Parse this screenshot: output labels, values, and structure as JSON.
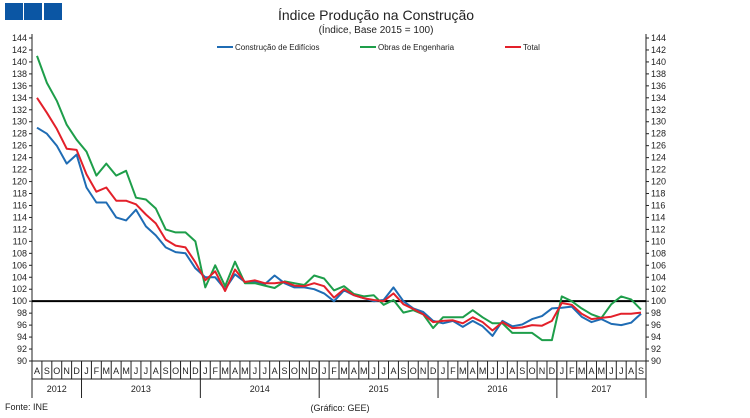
{
  "chart_data": {
    "type": "line",
    "title": "Índice Produção na Construção",
    "subtitle": "(Índice, Base 2015 = 100)",
    "source": "Fonte: INE",
    "credit": "(Gráfico: GEE)",
    "ylim": [
      90,
      144
    ],
    "ystep": 2,
    "reference_line": 100,
    "legend_position": "top",
    "months": [
      "A",
      "S",
      "O",
      "N",
      "D",
      "J",
      "F",
      "M",
      "A",
      "M",
      "J",
      "J",
      "A",
      "S",
      "O",
      "N",
      "D",
      "J",
      "F",
      "M",
      "A",
      "M",
      "J",
      "J",
      "A",
      "S",
      "O",
      "N",
      "D",
      "J",
      "F",
      "M",
      "A",
      "M",
      "J",
      "J",
      "A",
      "S",
      "O",
      "N",
      "D",
      "J",
      "F",
      "M",
      "A",
      "M",
      "J",
      "J",
      "A",
      "S",
      "O",
      "N",
      "D",
      "J",
      "F",
      "M",
      "A",
      "M",
      "J",
      "J",
      "A",
      "S"
    ],
    "years": [
      {
        "label": "2012",
        "count": 5
      },
      {
        "label": "2013",
        "count": 12
      },
      {
        "label": "2014",
        "count": 12
      },
      {
        "label": "2015",
        "count": 12
      },
      {
        "label": "2016",
        "count": 12
      },
      {
        "label": "2017",
        "count": 9
      }
    ],
    "series": [
      {
        "name": "Construção de Edifícios",
        "color": "#1f6cb4",
        "values": [
          129,
          128,
          126,
          123,
          124.5,
          119,
          116.5,
          116.5,
          114,
          113.5,
          115.3,
          112.5,
          111,
          109,
          108.2,
          108,
          105.5,
          104,
          104,
          102,
          104.5,
          103.2,
          103.3,
          102.8,
          104.3,
          103,
          102.3,
          102.3,
          102,
          101.3,
          100,
          101.8,
          101,
          100.5,
          100,
          100.2,
          102.3,
          100,
          98.8,
          98.2,
          96.7,
          96.3,
          96.7,
          95.7,
          96.7,
          95.8,
          94.2,
          96.7,
          95.8,
          96.1,
          97,
          97.5,
          98.8,
          98.9,
          99.1,
          97.4,
          96.5,
          97,
          96.2,
          96,
          96.4,
          97.9
        ]
      },
      {
        "name": "Obras de Engenharia",
        "color": "#1e9e4a",
        "values": [
          141,
          136.5,
          133.5,
          129.5,
          127,
          125,
          121,
          123,
          121,
          121.8,
          117.3,
          117,
          115.5,
          112,
          111.5,
          111.5,
          110,
          102.3,
          106,
          102.5,
          106.6,
          103,
          103,
          102.6,
          102.2,
          103.3,
          103,
          102.7,
          104.3,
          103.8,
          101.8,
          102.5,
          101.2,
          100.8,
          101,
          99.4,
          100.2,
          98.1,
          98.5,
          97.8,
          95.5,
          97.3,
          97.3,
          97.3,
          98.5,
          97.3,
          96.3,
          96.3,
          94.7,
          94.7,
          94.7,
          93.5,
          93.5,
          100.8,
          100,
          98.8,
          97.8,
          97.2,
          99.5,
          100.8,
          100.3,
          98.6
        ]
      },
      {
        "name": "Total",
        "color": "#e3202a",
        "values": [
          134,
          131.5,
          128.8,
          125.5,
          125.3,
          121.2,
          118.3,
          119,
          116.8,
          116.8,
          116.2,
          114.5,
          113,
          110.3,
          109.3,
          109,
          106.5,
          103.5,
          105,
          101.7,
          105.3,
          103.2,
          103.5,
          103,
          103,
          103.2,
          102.6,
          102.5,
          103,
          102.5,
          100.6,
          102,
          101,
          100.5,
          100.2,
          100,
          101.3,
          99.5,
          98.7,
          97.8,
          96.5,
          96.7,
          96.8,
          96.3,
          97.3,
          96.5,
          95.1,
          96.5,
          95.5,
          95.6,
          96,
          95.9,
          96.7,
          99.7,
          99.4,
          97.9,
          97,
          97.2,
          97.4,
          97.9,
          97.9,
          98.1
        ]
      }
    ]
  },
  "logo_color": "#0b56a4"
}
